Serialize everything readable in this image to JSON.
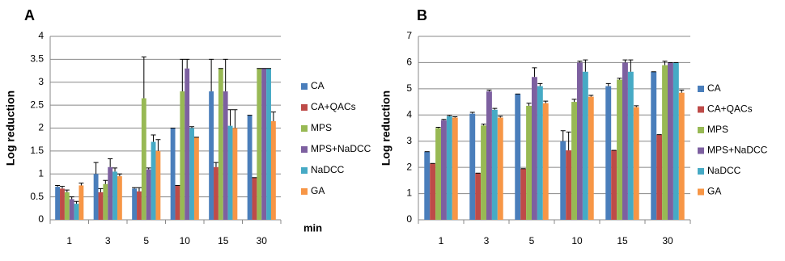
{
  "chart_data": [
    {
      "type": "bar",
      "panel": "A",
      "y_label": "Log reduction",
      "x_label": "min",
      "categories": [
        "1",
        "3",
        "5",
        "10",
        "15",
        "30"
      ],
      "ylim": [
        0,
        4
      ],
      "yticks": [
        0,
        0.5,
        1,
        1.5,
        2,
        2.5,
        3,
        3.5,
        4
      ],
      "grid": true,
      "series": [
        {
          "name": "CA",
          "color": "#4a7ebb",
          "values": [
            0.72,
            1.0,
            0.68,
            2.0,
            2.8,
            2.28
          ],
          "errors": [
            0.03,
            0.25,
            0.02,
            0,
            0.7,
            0
          ]
        },
        {
          "name": "CA+QACs",
          "color": "#be4b48",
          "values": [
            0.68,
            0.6,
            0.62,
            0.75,
            1.15,
            0.92
          ],
          "errors": [
            0.05,
            0.08,
            0.08,
            0,
            0.1,
            0
          ]
        },
        {
          "name": "MPS",
          "color": "#98b954",
          "values": [
            0.6,
            0.78,
            2.65,
            2.8,
            3.3,
            3.3
          ],
          "errors": [
            0.05,
            0.08,
            0.9,
            0.7,
            0,
            0
          ]
        },
        {
          "name": "MPS+NaDCC",
          "color": "#7d60a0",
          "values": [
            0.45,
            1.15,
            1.1,
            3.3,
            2.8,
            3.3
          ],
          "errors": [
            0.05,
            0.18,
            0.03,
            0.2,
            0.7,
            0
          ]
        },
        {
          "name": "NaDCC",
          "color": "#46aac5",
          "values": [
            0.35,
            1.05,
            1.7,
            2.0,
            2.05,
            3.3
          ],
          "errors": [
            0.05,
            0.08,
            0.15,
            0.03,
            0.35,
            0
          ]
        },
        {
          "name": "GA",
          "color": "#f79646",
          "values": [
            0.75,
            0.95,
            1.5,
            1.8,
            2.0,
            2.15
          ],
          "errors": [
            0.05,
            0.05,
            0.25,
            0,
            0.4,
            0.2
          ]
        }
      ]
    },
    {
      "type": "bar",
      "panel": "B",
      "y_label": "Log reduction",
      "categories": [
        "1",
        "3",
        "5",
        "10",
        "15",
        "30"
      ],
      "ylim": [
        0,
        7
      ],
      "yticks": [
        0,
        1,
        2,
        3,
        4,
        5,
        6,
        7
      ],
      "grid": true,
      "series": [
        {
          "name": "CA",
          "color": "#4a7ebb",
          "values": [
            2.6,
            4.05,
            4.8,
            3.0,
            5.1,
            5.65
          ],
          "errors": [
            0,
            0.05,
            0,
            0.4,
            0.1,
            0
          ]
        },
        {
          "name": "CA+QACs",
          "color": "#be4b48",
          "values": [
            2.15,
            1.78,
            1.95,
            2.65,
            2.65,
            3.25
          ],
          "errors": [
            0,
            0,
            0,
            0.7,
            0,
            0
          ]
        },
        {
          "name": "MPS",
          "color": "#98b954",
          "values": [
            3.5,
            3.6,
            4.35,
            4.5,
            5.35,
            5.9
          ],
          "errors": [
            0.03,
            0.05,
            0.1,
            0.1,
            0.05,
            0.15
          ]
        },
        {
          "name": "MPS+NaDCC",
          "color": "#7d60a0",
          "values": [
            3.8,
            4.9,
            5.45,
            6.0,
            6.0,
            6.0
          ],
          "errors": [
            0.03,
            0.05,
            0.35,
            0.05,
            0.1,
            0
          ]
        },
        {
          "name": "NaDCC",
          "color": "#46aac5",
          "values": [
            3.95,
            4.2,
            5.1,
            5.65,
            5.65,
            6.0
          ],
          "errors": [
            0.03,
            0.05,
            0.1,
            0.45,
            0.45,
            0
          ]
        },
        {
          "name": "GA",
          "color": "#f79646",
          "values": [
            3.9,
            3.9,
            4.45,
            4.7,
            4.3,
            4.85
          ],
          "errors": [
            0.03,
            0.05,
            0.08,
            0.05,
            0.05,
            0.1
          ]
        }
      ]
    }
  ]
}
